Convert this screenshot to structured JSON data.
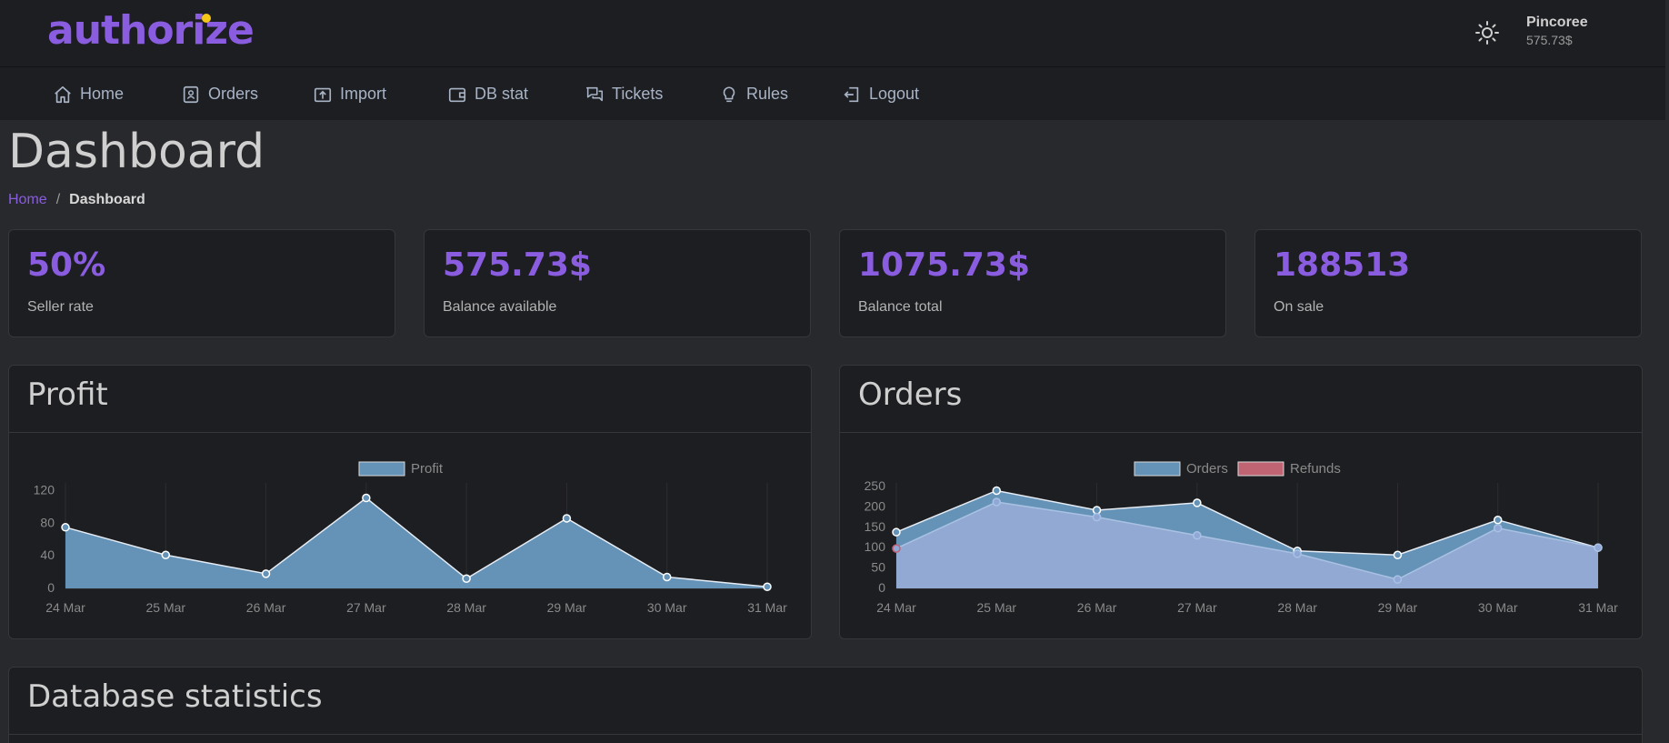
{
  "brand": {
    "logo_text": "authorize",
    "accent": "#8a5ce0",
    "dot_color": "#f5c518"
  },
  "user": {
    "name": "Pincoree",
    "balance": "575.73$",
    "theme_icon": "sun-icon"
  },
  "nav": [
    {
      "label": "Home",
      "icon": "home-icon"
    },
    {
      "label": "Orders",
      "icon": "orders-icon"
    },
    {
      "label": "Import",
      "icon": "import-icon"
    },
    {
      "label": "DB stat",
      "icon": "wallet-icon"
    },
    {
      "label": "Tickets",
      "icon": "tickets-icon"
    },
    {
      "label": "Rules",
      "icon": "lightbulb-icon"
    },
    {
      "label": "Logout",
      "icon": "logout-icon"
    }
  ],
  "page": {
    "title": "Dashboard"
  },
  "breadcrumb": {
    "home": "Home",
    "separator": "/",
    "current": "Dashboard"
  },
  "stats": [
    {
      "value": "50%",
      "label": "Seller rate"
    },
    {
      "value": "575.73$",
      "label": "Balance available"
    },
    {
      "value": "1075.73$",
      "label": "Balance total"
    },
    {
      "value": "188513",
      "label": "On sale"
    }
  ],
  "panels": {
    "profit_title": "Profit",
    "orders_title": "Orders",
    "db_title": "Database statistics"
  },
  "chart_data": [
    {
      "type": "area",
      "categories": [
        "24 Mar",
        "25 Mar",
        "26 Mar",
        "27 Mar",
        "28 Mar",
        "29 Mar",
        "30 Mar",
        "31 Mar"
      ],
      "series": [
        {
          "name": "Profit",
          "values": [
            75,
            41,
            18,
            111,
            12,
            86,
            14,
            2
          ],
          "color": "#6593b8"
        }
      ],
      "yticks": [
        0,
        40,
        80,
        120
      ],
      "ylim": [
        0,
        125
      ],
      "grid": "vertical",
      "legend": "top-center"
    },
    {
      "type": "area",
      "categories": [
        "24 Mar",
        "25 Mar",
        "26 Mar",
        "27 Mar",
        "28 Mar",
        "29 Mar",
        "30 Mar",
        "31 Mar"
      ],
      "series": [
        {
          "name": "Orders",
          "values": [
            138,
            240,
            192,
            210,
            92,
            82,
            168,
            100
          ],
          "color": "#6593b8"
        },
        {
          "name": "Refunds",
          "values": [
            98,
            212,
            175,
            130,
            85,
            22,
            148,
            100
          ],
          "color": "#c06473"
        }
      ],
      "yticks": [
        0,
        50,
        100,
        150,
        200,
        250
      ],
      "ylim": [
        0,
        250
      ],
      "grid": "vertical",
      "legend": "top-center"
    }
  ]
}
